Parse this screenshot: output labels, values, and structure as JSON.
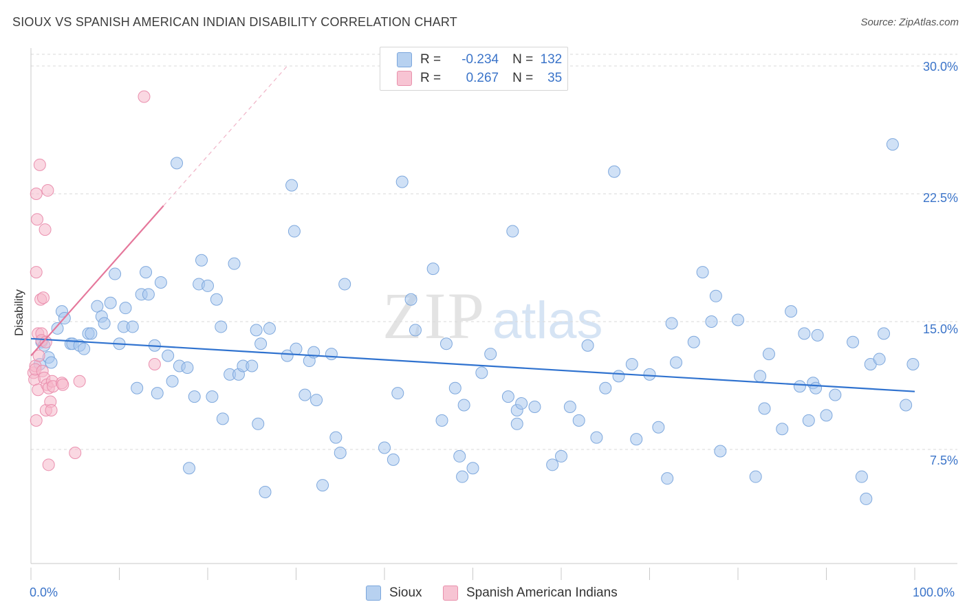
{
  "title": "SIOUX VS SPANISH AMERICAN INDIAN DISABILITY CORRELATION CHART",
  "source": "Source: ZipAtlas.com",
  "legend": {
    "rows": [
      {
        "r_label": "R =",
        "r_value": "-0.234",
        "n_label": "N =",
        "n_value": "132",
        "color": "#b7d1f0",
        "border": "#7aa6dc"
      },
      {
        "r_label": "R =",
        "r_value": "0.267",
        "n_label": "N =",
        "n_value": "35",
        "color": "#f7c4d3",
        "border": "#e890ab"
      }
    ]
  },
  "bottom_legend": [
    "Sioux",
    "Spanish American Indians"
  ],
  "watermark": {
    "zip": "ZIP",
    "atlas": "atlas"
  },
  "colors": {
    "sioux": "#a9c8ee",
    "sioux_line": "#2f72cf",
    "spanish": "#f5b8cb",
    "spanish_line": "#e5779b",
    "tick_text": "#3b74c9"
  },
  "chart_data": {
    "type": "scatter",
    "title": "SIOUX VS SPANISH AMERICAN INDIAN DISABILITY CORRELATION CHART",
    "xlabel": "",
    "ylabel": "Disability",
    "xlim": [
      0,
      100
    ],
    "ylim": [
      0,
      31
    ],
    "x_tick_labels": [
      "0.0%",
      "100.0%"
    ],
    "y_ticks": [
      7.5,
      15.0,
      22.5,
      30.0
    ],
    "y_tick_labels": [
      "7.5%",
      "15.0%",
      "22.5%",
      "30.0%"
    ],
    "grid": "horizontal dashed",
    "series": [
      {
        "name": "Sioux",
        "r": -0.234,
        "n": 132,
        "trend": {
          "x": [
            0,
            100
          ],
          "y": [
            14.0,
            10.9
          ]
        },
        "points": [
          [
            1,
            12.5
          ],
          [
            1.2,
            13.8
          ],
          [
            1.5,
            13.6
          ],
          [
            2,
            12.9
          ],
          [
            2.3,
            12.6
          ],
          [
            3,
            14.6
          ],
          [
            3.5,
            15.6
          ],
          [
            3.8,
            15.2
          ],
          [
            4.5,
            13.7
          ],
          [
            4.7,
            13.7
          ],
          [
            5.5,
            13.6
          ],
          [
            6,
            13.4
          ],
          [
            6.5,
            14.3
          ],
          [
            6.8,
            14.3
          ],
          [
            7.5,
            15.9
          ],
          [
            8,
            15.3
          ],
          [
            8.3,
            14.9
          ],
          [
            9,
            16.1
          ],
          [
            9.5,
            17.8
          ],
          [
            10,
            13.7
          ],
          [
            10.5,
            14.7
          ],
          [
            10.7,
            15.8
          ],
          [
            11.5,
            14.7
          ],
          [
            12,
            11.1
          ],
          [
            12.5,
            16.6
          ],
          [
            13,
            17.9
          ],
          [
            13.3,
            16.6
          ],
          [
            14,
            13.6
          ],
          [
            14.3,
            10.8
          ],
          [
            14.7,
            17.3
          ],
          [
            15.5,
            13.0
          ],
          [
            16,
            11.5
          ],
          [
            16.5,
            24.3
          ],
          [
            16.8,
            12.4
          ],
          [
            17.7,
            12.3
          ],
          [
            17.9,
            6.4
          ],
          [
            18.5,
            10.6
          ],
          [
            19,
            17.2
          ],
          [
            19.3,
            18.6
          ],
          [
            20,
            17.1
          ],
          [
            20.5,
            10.6
          ],
          [
            21,
            16.3
          ],
          [
            21.5,
            14.7
          ],
          [
            21.7,
            9.3
          ],
          [
            22.5,
            11.9
          ],
          [
            23,
            18.4
          ],
          [
            23.5,
            11.9
          ],
          [
            24,
            12.4
          ],
          [
            25,
            12.4
          ],
          [
            25.5,
            14.5
          ],
          [
            25.7,
            9.0
          ],
          [
            26,
            13.7
          ],
          [
            26.5,
            5.0
          ],
          [
            27,
            14.6
          ],
          [
            29,
            13.0
          ],
          [
            29.5,
            23.0
          ],
          [
            29.8,
            20.3
          ],
          [
            30,
            13.4
          ],
          [
            31,
            10.7
          ],
          [
            31.5,
            12.7
          ],
          [
            32,
            13.2
          ],
          [
            32.3,
            10.4
          ],
          [
            33,
            5.4
          ],
          [
            34,
            13.1
          ],
          [
            34.5,
            8.2
          ],
          [
            35,
            7.3
          ],
          [
            35.5,
            17.2
          ],
          [
            40,
            7.6
          ],
          [
            41,
            6.9
          ],
          [
            41.5,
            10.8
          ],
          [
            42,
            23.2
          ],
          [
            43,
            16.3
          ],
          [
            43.5,
            14.5
          ],
          [
            45.5,
            18.1
          ],
          [
            46.5,
            9.2
          ],
          [
            47,
            13.7
          ],
          [
            48,
            11.1
          ],
          [
            48.5,
            7.1
          ],
          [
            48.8,
            5.9
          ],
          [
            49,
            10.1
          ],
          [
            50,
            6.4
          ],
          [
            51,
            12.0
          ],
          [
            52,
            13.1
          ],
          [
            54,
            10.6
          ],
          [
            54.5,
            20.3
          ],
          [
            55,
            9.8
          ],
          [
            55,
            9.0
          ],
          [
            55.5,
            10.2
          ],
          [
            57,
            10.0
          ],
          [
            59,
            6.6
          ],
          [
            60,
            7.1
          ],
          [
            61,
            10.0
          ],
          [
            62,
            9.2
          ],
          [
            63,
            13.6
          ],
          [
            64,
            8.2
          ],
          [
            65,
            11.1
          ],
          [
            66,
            23.8
          ],
          [
            66.5,
            11.8
          ],
          [
            68,
            12.5
          ],
          [
            68.5,
            8.1
          ],
          [
            70,
            11.9
          ],
          [
            71,
            8.8
          ],
          [
            72,
            5.8
          ],
          [
            72.5,
            14.9
          ],
          [
            73,
            12.6
          ],
          [
            75,
            13.8
          ],
          [
            76,
            17.9
          ],
          [
            77,
            15.0
          ],
          [
            77.5,
            16.5
          ],
          [
            78,
            7.4
          ],
          [
            80,
            15.1
          ],
          [
            82,
            5.9
          ],
          [
            82.5,
            11.8
          ],
          [
            83,
            9.9
          ],
          [
            83.5,
            13.1
          ],
          [
            85,
            8.7
          ],
          [
            86,
            15.6
          ],
          [
            87,
            11.2
          ],
          [
            87.5,
            14.3
          ],
          [
            88,
            9.2
          ],
          [
            88.5,
            11.4
          ],
          [
            88.8,
            11.1
          ],
          [
            89,
            14.2
          ],
          [
            90,
            9.5
          ],
          [
            91,
            10.7
          ],
          [
            93,
            13.8
          ],
          [
            94,
            5.9
          ],
          [
            94.5,
            4.6
          ],
          [
            95,
            12.5
          ],
          [
            96,
            12.8
          ],
          [
            96.5,
            14.3
          ],
          [
            97.5,
            25.4
          ],
          [
            99,
            10.1
          ],
          [
            99.8,
            12.5
          ]
        ]
      },
      {
        "name": "Spanish American Indians",
        "r": 0.267,
        "n": 35,
        "trend": {
          "x": [
            0,
            15
          ],
          "y": [
            13.0,
            21.8
          ]
        },
        "trend_dashed": {
          "x": [
            15,
            29
          ],
          "y": [
            21.8,
            30.0
          ]
        },
        "points": [
          [
            0.3,
            12.0
          ],
          [
            0.4,
            11.6
          ],
          [
            0.5,
            12.4
          ],
          [
            0.5,
            12.2
          ],
          [
            0.6,
            9.2
          ],
          [
            0.6,
            17.9
          ],
          [
            0.6,
            22.5
          ],
          [
            0.7,
            21.0
          ],
          [
            0.8,
            14.3
          ],
          [
            0.8,
            11.0
          ],
          [
            0.9,
            13.0
          ],
          [
            1.0,
            24.2
          ],
          [
            1.1,
            16.3
          ],
          [
            1.2,
            14.3
          ],
          [
            1.2,
            13.9
          ],
          [
            1.3,
            12.1
          ],
          [
            1.4,
            16.4
          ],
          [
            1.5,
            11.7
          ],
          [
            1.6,
            20.4
          ],
          [
            1.7,
            13.8
          ],
          [
            1.7,
            9.8
          ],
          [
            1.8,
            11.3
          ],
          [
            1.9,
            22.7
          ],
          [
            2.0,
            11.1
          ],
          [
            2.0,
            6.6
          ],
          [
            2.2,
            10.3
          ],
          [
            2.3,
            9.8
          ],
          [
            2.4,
            11.5
          ],
          [
            2.5,
            11.2
          ],
          [
            3.5,
            11.4
          ],
          [
            3.6,
            11.3
          ],
          [
            5.0,
            7.3
          ],
          [
            5.5,
            11.5
          ],
          [
            12.8,
            28.2
          ],
          [
            14.0,
            12.5
          ]
        ]
      }
    ]
  }
}
